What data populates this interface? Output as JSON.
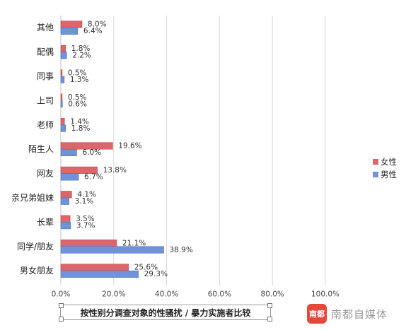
{
  "chart_data": {
    "type": "bar",
    "orientation": "horizontal",
    "title": "按性别分调查对象的性骚扰 / 暴力实施者比较",
    "categories": [
      "其他",
      "配偶",
      "同事",
      "上司",
      "老师",
      "陌生人",
      "网友",
      "亲兄弟姐妹",
      "长辈",
      "同学/朋友",
      "男女朋友"
    ],
    "series": [
      {
        "name": "女性",
        "color": "#d9676b",
        "values": [
          8.0,
          1.8,
          0.5,
          0.5,
          1.4,
          19.6,
          13.8,
          4.1,
          3.5,
          21.1,
          25.6
        ],
        "labels": [
          "8.0%",
          "1.8%",
          "0.5%",
          "0.5%",
          "1.4%",
          "19.6%",
          "13.8%",
          "4.1%",
          "3.5%",
          "21.1%",
          "25.6%"
        ]
      },
      {
        "name": "男性",
        "color": "#6f93d6",
        "values": [
          6.4,
          2.2,
          1.3,
          0.6,
          1.8,
          6.0,
          6.7,
          3.1,
          3.7,
          38.9,
          29.3
        ],
        "labels": [
          "6.4%",
          "2.2%",
          "1.3%",
          "0.6%",
          "1.8%",
          "6.0%",
          "6.7%",
          "3.1%",
          "3.7%",
          "38.9%",
          "29.3%"
        ]
      }
    ],
    "xlim": [
      0,
      100
    ],
    "xticks": [
      "0.0%",
      "20.0%",
      "40.0%",
      "60.0%",
      "80.0%",
      "100.0%"
    ],
    "grid": true,
    "legend_position": "right"
  },
  "watermark": {
    "logo_text": "南都",
    "text": "南都自媒体"
  }
}
